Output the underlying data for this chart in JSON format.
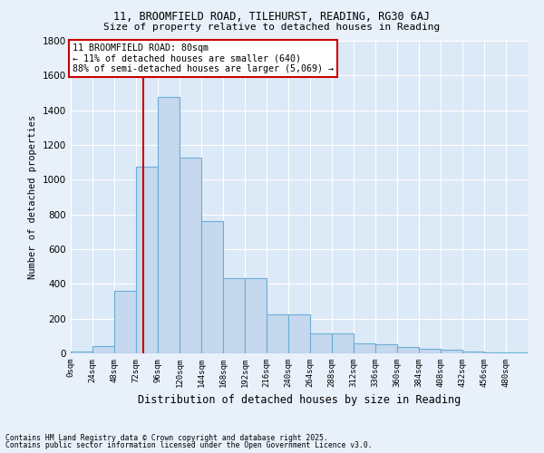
{
  "title1": "11, BROOMFIELD ROAD, TILEHURST, READING, RG30 6AJ",
  "title2": "Size of property relative to detached houses in Reading",
  "xlabel": "Distribution of detached houses by size in Reading",
  "ylabel": "Number of detached properties",
  "bar_color": "#c5d8ee",
  "bar_edge_color": "#6baed6",
  "background_color": "#dce9f7",
  "grid_color": "#ffffff",
  "fig_background": "#e8f0fa",
  "bin_edges": [
    0,
    24,
    48,
    72,
    96,
    120,
    144,
    168,
    192,
    216,
    240,
    264,
    288,
    312,
    336,
    360,
    384,
    408,
    432,
    456,
    480,
    504
  ],
  "bar_heights": [
    10,
    40,
    360,
    1075,
    1475,
    1125,
    760,
    435,
    435,
    225,
    225,
    115,
    115,
    55,
    50,
    35,
    25,
    20,
    10,
    5,
    5
  ],
  "property_size": 80,
  "red_line_color": "#cc0000",
  "annotation_line1": "11 BROOMFIELD ROAD: 80sqm",
  "annotation_line2": "← 11% of detached houses are smaller (640)",
  "annotation_line3": "88% of semi-detached houses are larger (5,069) →",
  "annotation_box_color": "#ffffff",
  "annotation_box_edge": "#cc0000",
  "ylim": [
    0,
    1800
  ],
  "yticks": [
    0,
    200,
    400,
    600,
    800,
    1000,
    1200,
    1400,
    1600,
    1800
  ],
  "footnote1": "Contains HM Land Registry data © Crown copyright and database right 2025.",
  "footnote2": "Contains public sector information licensed under the Open Government Licence v3.0.",
  "title1_fontsize": 8.5,
  "title2_fontsize": 8.0
}
